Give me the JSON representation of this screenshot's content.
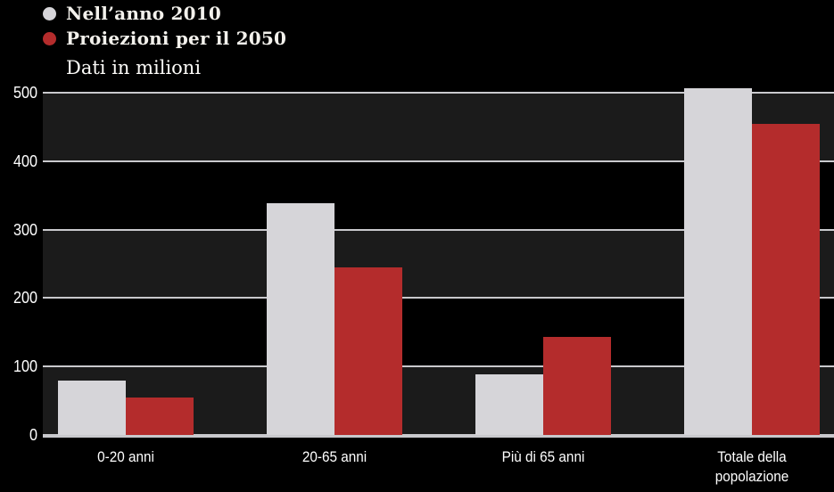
{
  "legend": {
    "subtitle": "Dati in milioni"
  },
  "chart_data": {
    "type": "bar",
    "title": "",
    "subtitle": "Dati in milioni",
    "categories": [
      "0-20 anni",
      "20-65 anni",
      "Più di 65 anni",
      "Totale della popolazione"
    ],
    "series": [
      {
        "name": "Nell’anno 2010",
        "color": "#d6d5d9",
        "values": [
          80,
          338,
          88,
          507
        ]
      },
      {
        "name": "Proiezioni per il 2050",
        "color": "#b42c2c",
        "values": [
          55,
          245,
          143,
          454
        ]
      }
    ],
    "xlabel": "",
    "ylabel": "Dati in milioni",
    "ylim": [
      0,
      500
    ],
    "yticks": [
      0,
      100,
      200,
      300,
      400,
      500
    ],
    "grid": true,
    "legend_position": "top-left",
    "colors": {
      "background": "#000000",
      "band_dark": "#1b1b1b",
      "band_black": "#000000",
      "gridline": "#c9c9cd",
      "axis_text": "#ffffff"
    }
  }
}
